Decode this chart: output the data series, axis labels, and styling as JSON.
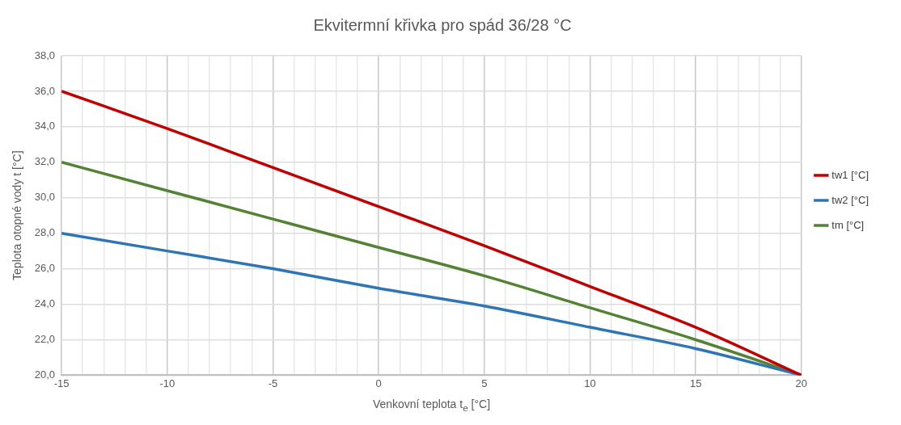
{
  "chart_data": {
    "type": "line",
    "title": "Ekvitermní křivka pro spád 36/28 °C",
    "xlabel": "Venkovní teplota t$_{e}$ [°C]",
    "ylabel": "Teplota otopné vody t [°C]",
    "x": [
      -15,
      -10,
      -5,
      0,
      5,
      10,
      15,
      20
    ],
    "series": [
      {
        "name": "tw1 [°C]",
        "color": "#c00000",
        "values": [
          36,
          33.9,
          31.7,
          29.5,
          27.3,
          25.0,
          22.7,
          20
        ]
      },
      {
        "name": "tw2 [°C]",
        "color": "#2e75b6",
        "values": [
          28,
          27.0,
          26.0,
          24.9,
          23.9,
          22.7,
          21.5,
          20
        ]
      },
      {
        "name": "tm [°C]",
        "color": "#548235",
        "values": [
          32,
          30.4,
          28.8,
          27.2,
          25.6,
          23.8,
          22.0,
          20
        ]
      }
    ],
    "xlim": [
      -15,
      20
    ],
    "xticks": [
      -15,
      {
        "value": -14,
        "label": null
      },
      {
        "value": -13,
        "label": null
      },
      {
        "value": -12,
        "label": null
      },
      {
        "value": -11,
        "label": null
      },
      -10,
      {
        "value": -9,
        "label": null
      },
      {
        "value": -8,
        "label": null
      },
      {
        "value": -7,
        "label": null
      },
      {
        "value": -6,
        "label": null
      },
      -5,
      {
        "value": -4,
        "label": null
      },
      {
        "value": -3,
        "label": null
      },
      {
        "value": -2,
        "label": null
      },
      {
        "value": -1,
        "label": null
      },
      0,
      {
        "value": 1,
        "label": null
      },
      {
        "value": 2,
        "label": null
      },
      {
        "value": 3,
        "label": null
      },
      {
        "value": 4,
        "label": null
      },
      5,
      {
        "value": 6,
        "label": null
      },
      {
        "value": 7,
        "label": null
      },
      {
        "value": 8,
        "label": null
      },
      {
        "value": 9,
        "label": null
      },
      10,
      {
        "value": 11,
        "label": null
      },
      {
        "value": 12,
        "label": null
      },
      {
        "value": 13,
        "label": null
      },
      {
        "value": 14,
        "label": null
      },
      15,
      {
        "value": 16,
        "label": null
      },
      {
        "value": 17,
        "label": null
      },
      {
        "value": 18,
        "label": null
      },
      {
        "value": 19,
        "label": null
      },
      20
    ],
    "ylim": [
      20,
      38
    ],
    "yticks": [
      {
        "value": 20,
        "label": "20,0"
      },
      {
        "value": 22,
        "label": "22,0"
      },
      {
        "value": 24,
        "label": "24,0"
      },
      {
        "value": 26,
        "label": "26,0"
      },
      {
        "value": 28,
        "label": "28,0"
      },
      {
        "value": 30,
        "label": "30,0"
      },
      {
        "value": 32,
        "label": "32,0"
      },
      {
        "value": 34,
        "label": "34,0"
      },
      {
        "value": 36,
        "label": "36,0"
      },
      {
        "value": 38,
        "label": "38,0"
      }
    ],
    "grid": true,
    "legend": "right",
    "marker": "none",
    "line_style": "solid"
  }
}
